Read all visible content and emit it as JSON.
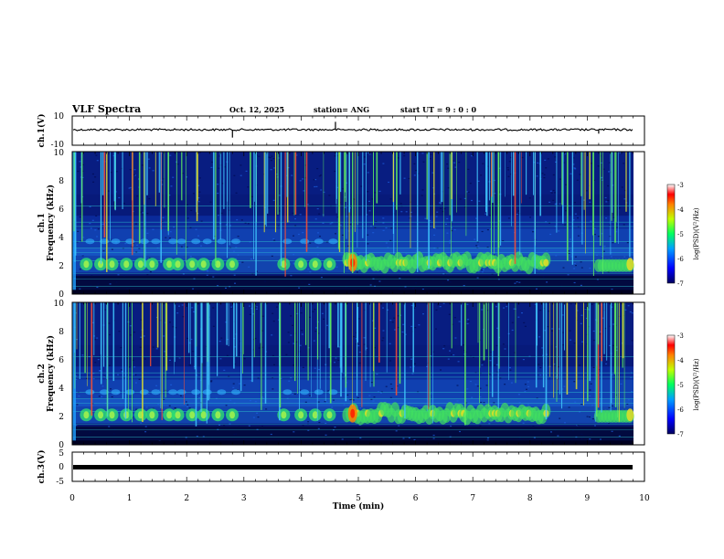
{
  "header": {
    "title": "VLF Spectra",
    "date": "Oct. 12, 2025",
    "station": "station= ANG",
    "start": "start  UT =   9 : 0  : 0"
  },
  "chart_data": [
    {
      "type": "line",
      "panel": "ch1-waveform",
      "ylabel": "ch.1(V)",
      "ylim": [
        -10,
        10
      ],
      "yticks": [
        "10",
        "-10"
      ],
      "xlim": [
        0,
        10
      ],
      "x": [
        0,
        1,
        2,
        2.8,
        3,
        4,
        4.6,
        5,
        6,
        7,
        8,
        9,
        9.2,
        9.8
      ],
      "values": [
        0,
        0,
        0,
        -2,
        0,
        0,
        2,
        0,
        0,
        0,
        0,
        0,
        -1,
        0
      ]
    },
    {
      "type": "heatmap",
      "panel": "ch1-spectrogram",
      "ylabel": "ch.1",
      "ylabel2": "Frequency (kHz)",
      "ylim": [
        0,
        10
      ],
      "yticks": [
        "0",
        "2",
        "4",
        "6",
        "8",
        "10"
      ],
      "xlim": [
        0,
        10
      ],
      "colorbar": {
        "label": "log(PSD)(V²/Hz)",
        "range": [
          -7,
          -3
        ],
        "ticks": [
          "-3",
          "-4",
          "-5",
          "-6",
          "-7"
        ]
      }
    },
    {
      "type": "heatmap",
      "panel": "ch2-spectrogram",
      "ylabel": "ch.2",
      "ylabel2": "Frequency (kHz)",
      "ylim": [
        0,
        10
      ],
      "yticks": [
        "0",
        "2",
        "4",
        "6",
        "8",
        "10"
      ],
      "xlim": [
        0,
        10
      ],
      "colorbar": {
        "label": "log(PSD)(V²/Hz)",
        "range": [
          -7,
          -3
        ],
        "ticks": [
          "-3",
          "-4",
          "-5",
          "-6",
          "-7"
        ]
      }
    },
    {
      "type": "line",
      "panel": "ch3-waveform",
      "ylabel": "ch.3(V)",
      "ylim": [
        -5,
        5
      ],
      "yticks": [
        "5",
        "0",
        "-5"
      ],
      "xlim": [
        0,
        10
      ],
      "x": [
        0,
        10
      ],
      "values": [
        0,
        0
      ]
    }
  ],
  "xaxis": {
    "label": "Time (min)",
    "ticks": [
      "0",
      "1",
      "2",
      "3",
      "4",
      "5",
      "6",
      "7",
      "8",
      "9",
      "10"
    ]
  }
}
